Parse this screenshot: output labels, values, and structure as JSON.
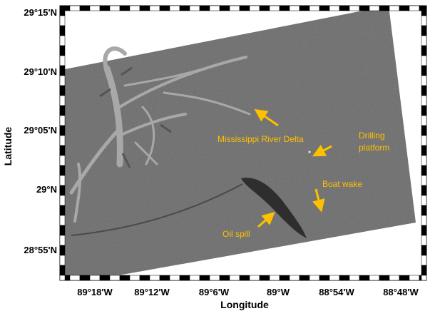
{
  "axes": {
    "x_label": "Longitude",
    "y_label": "Latitude",
    "x_ticks": [
      "89°18'W",
      "89°12'W",
      "89°6'W",
      "89°W",
      "88°54'W",
      "88°48'W"
    ],
    "y_ticks": [
      "29°15'N",
      "29°10'N",
      "29°05'N",
      "29°N",
      "28°55'N"
    ]
  },
  "annotations": {
    "delta": "Mississippi River Delta",
    "platform_1": "Drilling",
    "platform_2": "platform",
    "wake": "Boat wake",
    "spill": "Oil spill"
  }
}
